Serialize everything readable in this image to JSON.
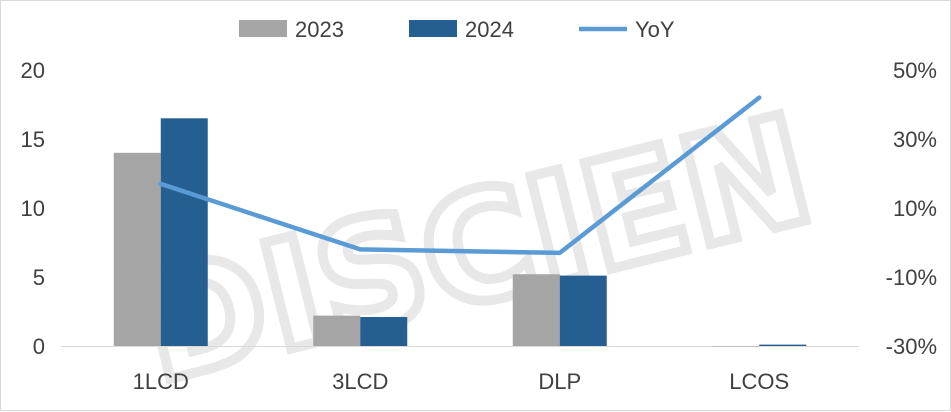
{
  "chart_data": {
    "type": "bar",
    "categories": [
      "1LCD",
      "3LCD",
      "DLP",
      "LCOS"
    ],
    "series": [
      {
        "name": "2023",
        "kind": "bar",
        "axis": "left",
        "color": "#a5a5a5",
        "values": [
          14.0,
          2.2,
          5.2,
          0.0
        ]
      },
      {
        "name": "2024",
        "kind": "bar",
        "axis": "left",
        "color": "#255e91",
        "values": [
          16.5,
          2.1,
          5.1,
          0.1
        ]
      },
      {
        "name": "YoY",
        "kind": "line",
        "axis": "right",
        "color": "#5b9bd5",
        "values": [
          0.17,
          -0.02,
          -0.03,
          0.42
        ]
      }
    ],
    "ylim": [
      0,
      20
    ],
    "yticks": [
      "0",
      "5",
      "10",
      "15",
      "20"
    ],
    "ylim_right": [
      -0.3,
      0.5
    ],
    "yticks_right": [
      "-30%",
      "-10%",
      "10%",
      "30%",
      "50%"
    ],
    "grid": false,
    "legend_position": "top"
  },
  "watermark": {
    "text": "DISCIEN"
  }
}
